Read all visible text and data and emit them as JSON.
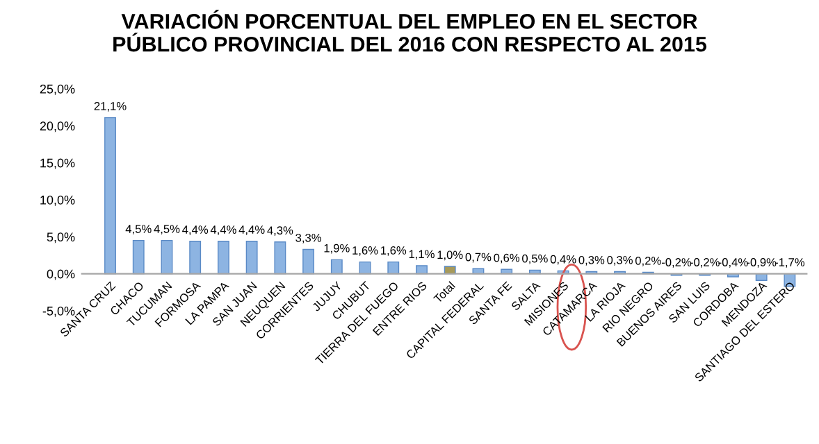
{
  "chart_data": {
    "type": "bar",
    "title": "VARIACIÓN PORCENTUAL DEL EMPLEO EN EL SECTOR\nPÚBLICO PROVINCIAL DEL 2016 CON RESPECTO AL 2015",
    "categories": [
      "SANTA CRUZ",
      "CHACO",
      "TUCUMAN",
      "FORMOSA",
      "LA PAMPA",
      "SAN JUAN",
      "NEUQUEN",
      "CORRIENTES",
      "JUJUY",
      "CHUBUT",
      "TIERRA DEL FUEGO",
      "ENTRE RIOS",
      "Total",
      "CAPITAL FEDERAL",
      "SANTA FE",
      "SALTA",
      "MISIONES",
      "CATAMARCA",
      "LA RIOJA",
      "RIO NEGRO",
      "BUENOS AIRES",
      "SAN LUIS",
      "CORDOBA",
      "MENDOZA",
      "SANTIAGO DEL ESTERO"
    ],
    "values": [
      21.1,
      4.5,
      4.5,
      4.4,
      4.4,
      4.4,
      4.3,
      3.3,
      1.9,
      1.6,
      1.6,
      1.1,
      1.0,
      0.7,
      0.6,
      0.5,
      0.4,
      0.3,
      0.3,
      0.2,
      -0.2,
      -0.2,
      -0.4,
      -0.9,
      -1.7
    ],
    "value_labels": [
      "21,1%",
      "4,5%",
      "4,5%",
      "4,4%",
      "4,4%",
      "4,4%",
      "4,3%",
      "3,3%",
      "1,9%",
      "1,6%",
      "1,6%",
      "1,1%",
      "1,0%",
      "0,7%",
      "0,6%",
      "0,5%",
      "0,4%",
      "0,3%",
      "0,3%",
      "0,2%",
      "-0,2%",
      "-0,2%",
      "-0,4%",
      "-0,9%",
      "-1,7%"
    ],
    "colors": [
      "#8db4e2",
      "#8db4e2",
      "#8db4e2",
      "#8db4e2",
      "#8db4e2",
      "#8db4e2",
      "#8db4e2",
      "#8db4e2",
      "#8db4e2",
      "#8db4e2",
      "#8db4e2",
      "#8db4e2",
      "#a79a5a",
      "#8db4e2",
      "#8db4e2",
      "#8db4e2",
      "#8db4e2",
      "#8db4e2",
      "#8db4e2",
      "#8db4e2",
      "#8db4e2",
      "#8db4e2",
      "#8db4e2",
      "#8db4e2",
      "#8db4e2"
    ],
    "ylim": [
      -5,
      25
    ],
    "yticks": [
      {
        "value": -5,
        "label": "-5,0%"
      },
      {
        "value": 0,
        "label": "0,0%"
      },
      {
        "value": 5,
        "label": "5,0%"
      },
      {
        "value": 10,
        "label": "10,0%"
      },
      {
        "value": 15,
        "label": "15,0%"
      },
      {
        "value": 20,
        "label": "20,0%"
      },
      {
        "value": 25,
        "label": "25,0%"
      }
    ],
    "grid": false,
    "legend": false
  }
}
